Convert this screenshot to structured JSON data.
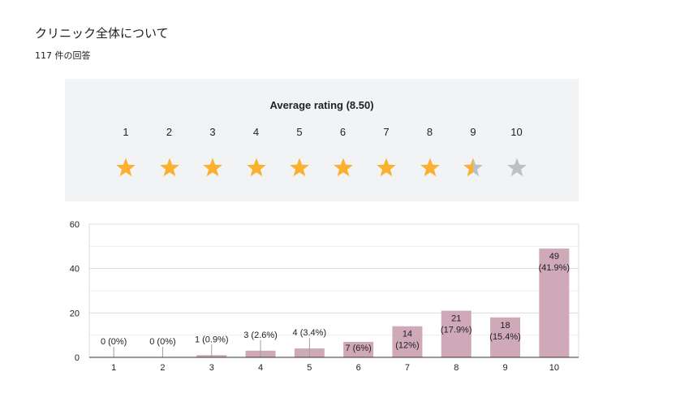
{
  "header": {
    "title": "クリニック全体について",
    "response_count": "117 件の回答"
  },
  "rating": {
    "average_label": "Average rating (8.50)",
    "stars": [
      {
        "label": "1",
        "fill": 1
      },
      {
        "label": "2",
        "fill": 1
      },
      {
        "label": "3",
        "fill": 1
      },
      {
        "label": "4",
        "fill": 1
      },
      {
        "label": "5",
        "fill": 1
      },
      {
        "label": "6",
        "fill": 1
      },
      {
        "label": "7",
        "fill": 1
      },
      {
        "label": "8",
        "fill": 1
      },
      {
        "label": "9",
        "fill": 0.5
      },
      {
        "label": "10",
        "fill": 0
      }
    ],
    "colors": {
      "filled": "#fbb12f",
      "empty": "#bdc1c6"
    }
  },
  "chart_data": {
    "type": "bar",
    "categories": [
      "1",
      "2",
      "3",
      "4",
      "5",
      "6",
      "7",
      "8",
      "9",
      "10"
    ],
    "values": [
      0,
      0,
      1,
      3,
      4,
      7,
      14,
      21,
      18,
      49
    ],
    "data_labels": [
      "0 (0%)",
      "0 (0%)",
      "1 (0.9%)",
      "3 (2.6%)",
      "4 (3.4%)",
      "7 (6%)",
      "14 (12%)",
      "21 (17.9%)",
      "18 (15.4%)",
      "49 (41.9%)"
    ],
    "ylim": [
      0,
      60
    ],
    "yticks": [
      0,
      20,
      40,
      60
    ],
    "grid": true,
    "bar_color": "#d0a9b8"
  }
}
